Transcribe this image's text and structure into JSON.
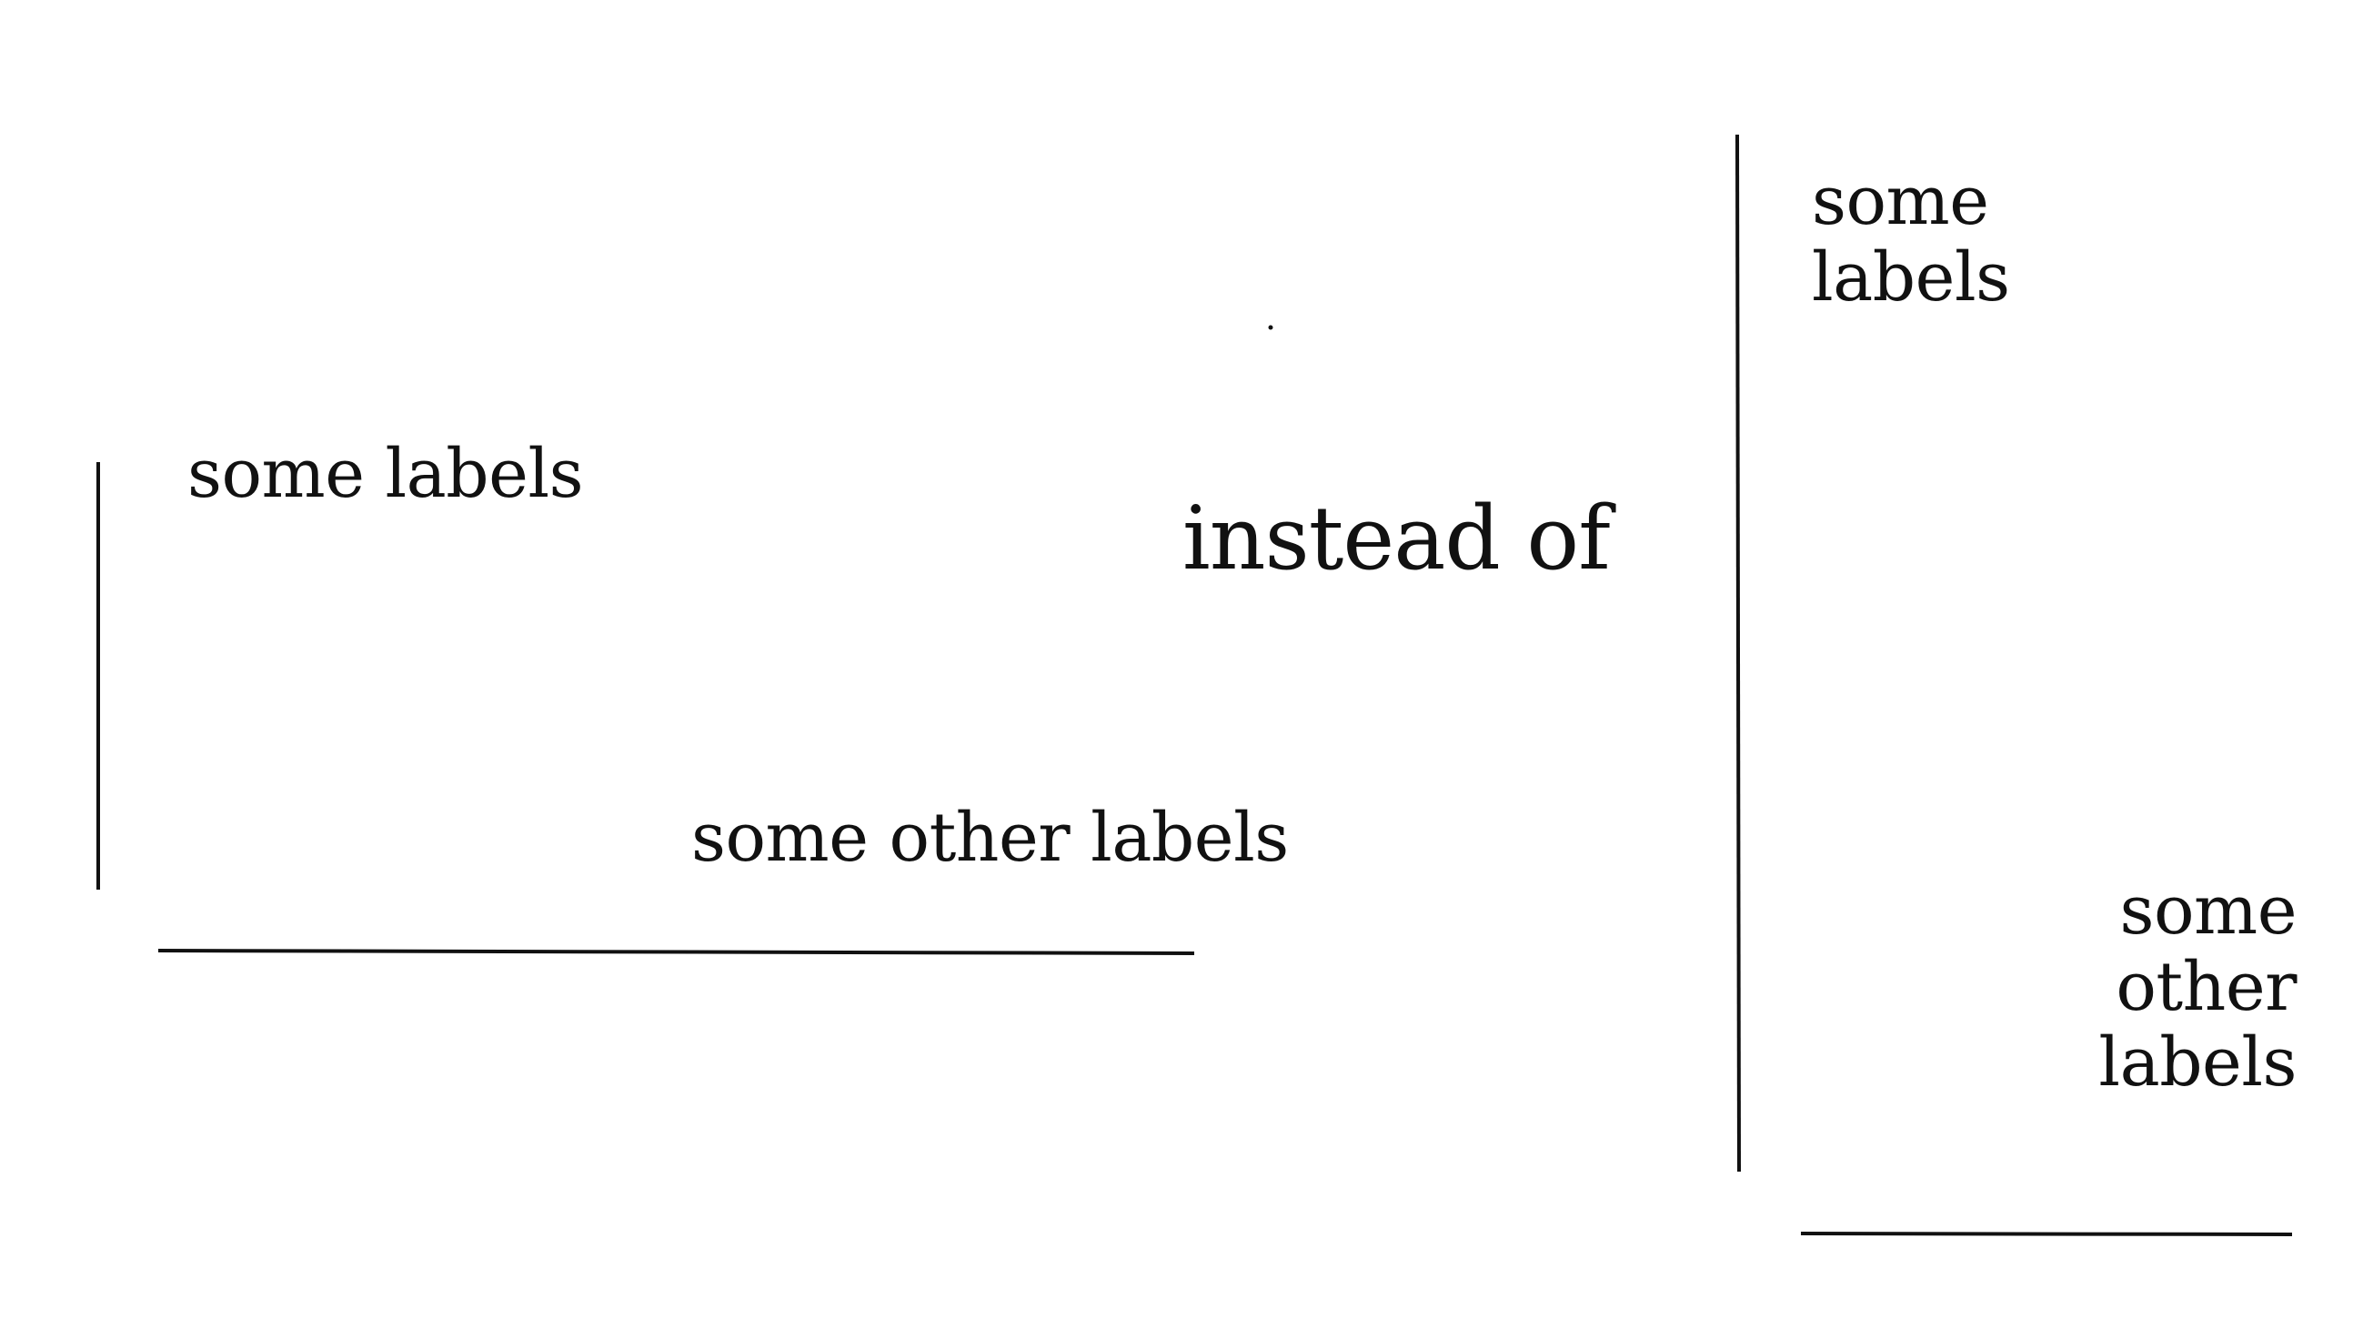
{
  "left_figure": {
    "top_label": "some labels",
    "bottom_label": "some other labels"
  },
  "middle_text": "instead of",
  "right_figure": {
    "top_label": "some\nlabels",
    "bottom_label": "some\nother\nlabels"
  },
  "colors": {
    "ink": "#111111",
    "background": "#ffffff"
  }
}
